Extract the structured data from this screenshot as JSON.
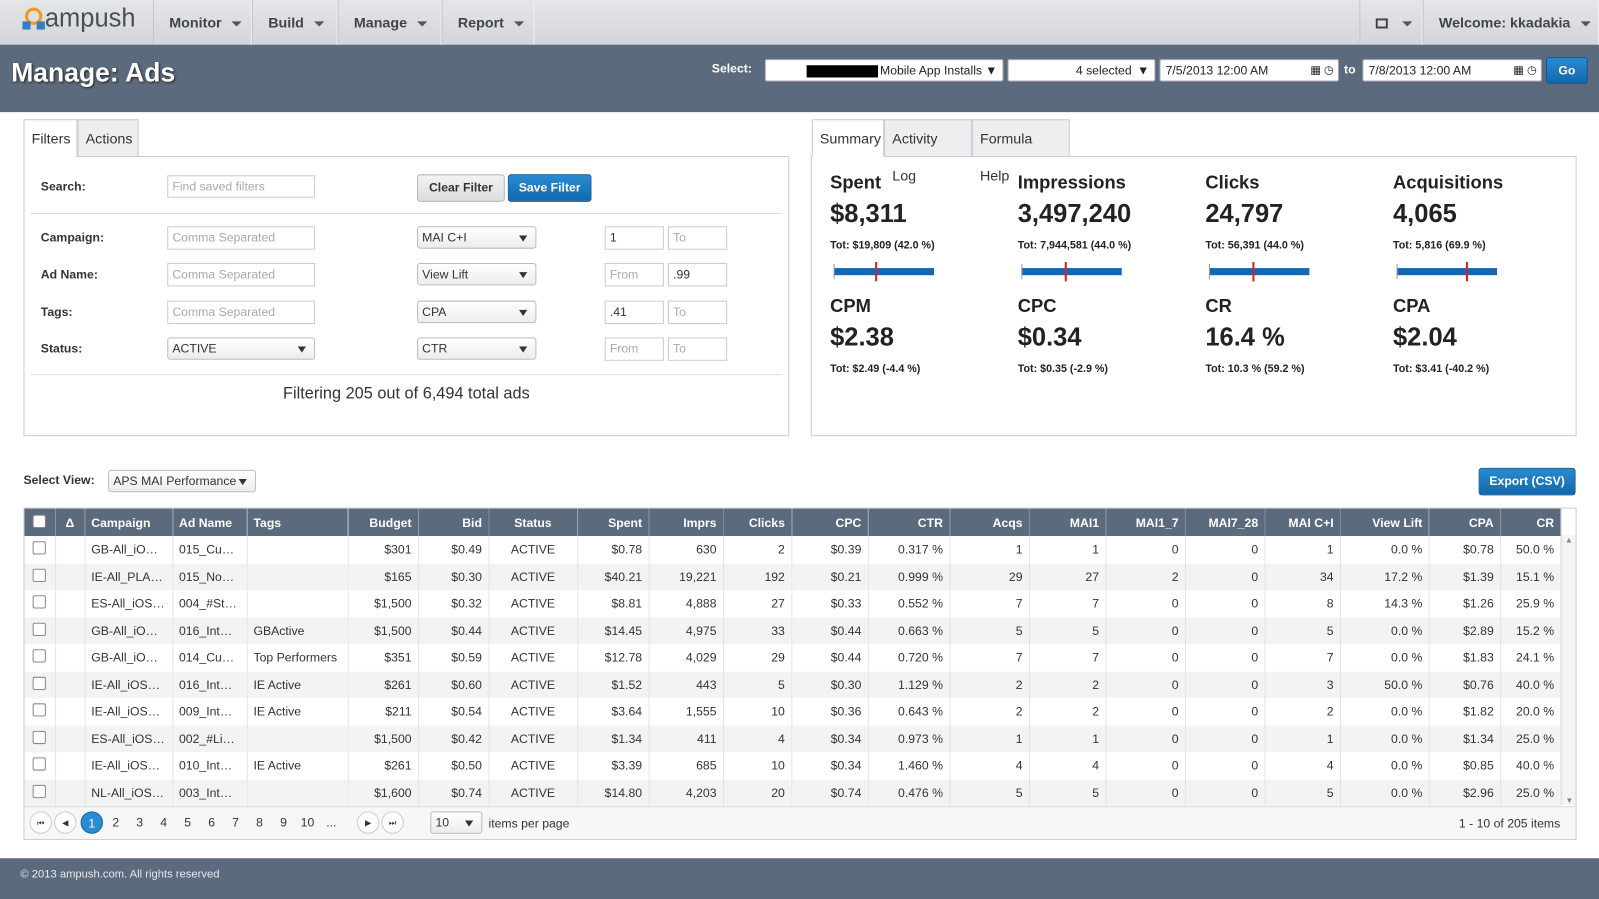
{
  "nav": {
    "logo": "ampush",
    "menus": [
      "Monitor",
      "Build",
      "Manage",
      "Report"
    ],
    "welcome": "Welcome: kkadakia"
  },
  "header": {
    "title": "Manage: Ads",
    "select_label": "Select:",
    "account": "Mobile App Installs",
    "groups": "4 selected",
    "date_from": "7/5/2013 12:00 AM",
    "to": "to",
    "date_to": "7/8/2013 12:00 AM",
    "go": "Go"
  },
  "filters": {
    "tabs": [
      "Filters",
      "Actions"
    ],
    "search_label": "Search:",
    "search_placeholder": "Find saved filters",
    "clear": "Clear Filter",
    "save": "Save Filter",
    "rows": [
      {
        "label": "Campaign:",
        "input": {
          "placeholder": "Comma Separated"
        },
        "metric": "MAI C+I",
        "from": {
          "value": "1"
        },
        "to": {
          "placeholder": "To"
        }
      },
      {
        "label": "Ad Name:",
        "input": {
          "placeholder": "Comma Separated"
        },
        "metric": "View Lift",
        "from": {
          "placeholder": "From"
        },
        "to": {
          "value": ".99"
        }
      },
      {
        "label": "Tags:",
        "input": {
          "placeholder": "Comma Separated"
        },
        "metric": "CPA",
        "from": {
          "value": ".41"
        },
        "to": {
          "placeholder": "To"
        }
      },
      {
        "label": "Status:",
        "input": {
          "select": "ACTIVE"
        },
        "metric": "CTR",
        "from": {
          "placeholder": "From"
        },
        "to": {
          "placeholder": "To"
        }
      }
    ],
    "summary": "Filtering 205 out of 6,494 total ads"
  },
  "summary": {
    "tabs": [
      "Summary",
      "Activity Log",
      "Formula Help"
    ],
    "metrics": [
      {
        "label": "Spent",
        "value": "$8,311",
        "total": "Tot: $19,809 (42.0 %)",
        "share": 42.0
      },
      {
        "label": "Impressions",
        "value": "3,497,240",
        "total": "Tot: 7,944,581 (44.0 %)",
        "share": 44.0
      },
      {
        "label": "Clicks",
        "value": "24,797",
        "total": "Tot: 56,391 (44.0 %)",
        "share": 44.0
      },
      {
        "label": "Acquisitions",
        "value": "4,065",
        "total": "Tot: 5,816 (69.9 %)",
        "share": 69.9
      },
      {
        "label": "CPM",
        "value": "$2.38",
        "total": "Tot: $2.49 (-4.4 %)"
      },
      {
        "label": "CPC",
        "value": "$0.34",
        "total": "Tot: $0.35 (-2.9 %)"
      },
      {
        "label": "CR",
        "value": "16.4 %",
        "total": "Tot: 10.3 % (59.2 %)"
      },
      {
        "label": "CPA",
        "value": "$2.04",
        "total": "Tot: $3.41 (-40.2 %)"
      }
    ]
  },
  "view": {
    "label": "Select View:",
    "selected": "APS MAI Performance",
    "export": "Export (CSV)"
  },
  "table": {
    "delta_header": "Δ",
    "columns": [
      "Campaign",
      "Ad Name",
      "Tags",
      "Budget",
      "Bid",
      "Status",
      "Spent",
      "Imprs",
      "Clicks",
      "CPC",
      "CTR",
      "Acqs",
      "MAI1",
      "MAI1_7",
      "MAI7_28",
      "MAI C+I",
      "View Lift",
      "CPA",
      "CR"
    ],
    "rows": [
      [
        "GB-All_iO…",
        "015_Cu…",
        null,
        "$301",
        "$0.49",
        "ACTIVE",
        "$0.78",
        "630",
        "2",
        "$0.39",
        "0.317 %",
        "1",
        "1",
        "0",
        "0",
        "1",
        "0.0 %",
        "$0.78",
        "50.0 %"
      ],
      [
        "IE-All_PLA…",
        "015_No…",
        null,
        "$165",
        "$0.30",
        "ACTIVE",
        "$40.21",
        "19,221",
        "192",
        "$0.21",
        "0.999 %",
        "29",
        "27",
        "2",
        "0",
        "34",
        "17.2 %",
        "$1.39",
        "15.1 %"
      ],
      [
        "ES-All_iOS…",
        "004_#St…",
        null,
        "$1,500",
        "$0.32",
        "ACTIVE",
        "$8.81",
        "4,888",
        "27",
        "$0.33",
        "0.552 %",
        "7",
        "7",
        "0",
        "0",
        "8",
        "14.3 %",
        "$1.26",
        "25.9 %"
      ],
      [
        "GB-All_iO…",
        "016_Int…",
        "GBActive",
        "$1,500",
        "$0.44",
        "ACTIVE",
        "$14.45",
        "4,975",
        "33",
        "$0.44",
        "0.663 %",
        "5",
        "5",
        "0",
        "0",
        "5",
        "0.0 %",
        "$2.89",
        "15.2 %"
      ],
      [
        "GB-All_iO…",
        "014_Cu…",
        "Top Performers",
        "$351",
        "$0.59",
        "ACTIVE",
        "$12.78",
        "4,029",
        "29",
        "$0.44",
        "0.720 %",
        "7",
        "7",
        "0",
        "0",
        "7",
        "0.0 %",
        "$1.83",
        "24.1 %"
      ],
      [
        "IE-All_iOS…",
        "016_Int…",
        "IE Active",
        "$261",
        "$0.60",
        "ACTIVE",
        "$1.52",
        "443",
        "5",
        "$0.30",
        "1.129 %",
        "2",
        "2",
        "0",
        "0",
        "3",
        "50.0 %",
        "$0.76",
        "40.0 %"
      ],
      [
        "IE-All_iOS…",
        "009_Int…",
        "IE Active",
        "$211",
        "$0.54",
        "ACTIVE",
        "$3.64",
        "1,555",
        "10",
        "$0.36",
        "0.643 %",
        "2",
        "2",
        "0",
        "0",
        "2",
        "0.0 %",
        "$1.82",
        "20.0 %"
      ],
      [
        "ES-All_iOS…",
        "002_#Li…",
        null,
        "$1,500",
        "$0.42",
        "ACTIVE",
        "$1.34",
        "411",
        "4",
        "$0.34",
        "0.973 %",
        "1",
        "1",
        "0",
        "0",
        "1",
        "0.0 %",
        "$1.34",
        "25.0 %"
      ],
      [
        "IE-All_iOS…",
        "010_Int…",
        "IE Active",
        "$261",
        "$0.50",
        "ACTIVE",
        "$3.39",
        "685",
        "10",
        "$0.34",
        "1.460 %",
        "4",
        "4",
        "0",
        "0",
        "4",
        "0.0 %",
        "$0.85",
        "40.0 %"
      ],
      [
        "NL-All_iOS…",
        "003_Int…",
        null,
        "$1,600",
        "$0.74",
        "ACTIVE",
        "$14.80",
        "4,203",
        "20",
        "$0.74",
        "0.476 %",
        "5",
        "5",
        "0",
        "0",
        "5",
        "0.0 %",
        "$2.96",
        "25.0 %"
      ]
    ]
  },
  "pager": {
    "pages": [
      "1",
      "2",
      "3",
      "4",
      "5",
      "6",
      "7",
      "8",
      "9",
      "10",
      "..."
    ],
    "per_page": "10",
    "per_page_label": "items per page",
    "info": "1 - 10 of 205 items"
  },
  "footer": "© 2013 ampush.com. All rights reserved"
}
